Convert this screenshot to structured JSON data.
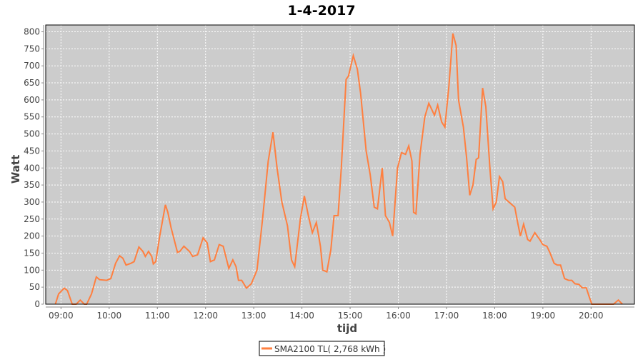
{
  "chart_data": {
    "type": "line",
    "title": "1-4-2017",
    "xlabel": "tijd",
    "ylabel": "Watt",
    "xlim": [
      "08:41",
      "20:54"
    ],
    "ylim": [
      0,
      820
    ],
    "grid": true,
    "legend_placement": "bottom",
    "plot_background": "#CCCCCC",
    "y_ticks": [
      "0",
      "50",
      "100",
      "150",
      "200",
      "250",
      "300",
      "350",
      "400",
      "450",
      "500",
      "550",
      "600",
      "650",
      "700",
      "750",
      "800"
    ],
    "x_ticks": [
      "09:00",
      "10:00",
      "11:00",
      "12:00",
      "13:00",
      "14:00",
      "15:00",
      "16:00",
      "17:00",
      "18:00",
      "19:00",
      "20:00"
    ],
    "series": [
      {
        "name": "SMA2100 TL( 2,768 kWh )",
        "color": "#FF7F3F",
        "x": [
          "08:53",
          "08:57",
          "09:04",
          "09:08",
          "09:14",
          "09:19",
          "09:24",
          "09:29",
          "09:32",
          "09:38",
          "09:44",
          "09:48",
          "09:57",
          "10:02",
          "10:08",
          "10:13",
          "10:17",
          "10:21",
          "10:27",
          "10:31",
          "10:37",
          "10:42",
          "10:45",
          "10:49",
          "10:53",
          "10:55",
          "10:58",
          "11:03",
          "11:10",
          "11:13",
          "11:17",
          "11:25",
          "11:28",
          "11:33",
          "11:40",
          "11:44",
          "11:50",
          "11:57",
          "12:02",
          "12:06",
          "12:11",
          "12:17",
          "12:22",
          "12:29",
          "12:34",
          "12:38",
          "12:41",
          "12:45",
          "12:51",
          "12:57",
          "13:04",
          "13:11",
          "13:18",
          "13:24",
          "13:29",
          "13:35",
          "13:42",
          "13:47",
          "13:51",
          "13:58",
          "14:03",
          "14:08",
          "14:13",
          "14:18",
          "14:23",
          "14:26",
          "14:31",
          "14:36",
          "14:40",
          "14:45",
          "14:49",
          "14:55",
          "14:58",
          "15:04",
          "15:09",
          "15:13",
          "15:20",
          "15:25",
          "15:30",
          "15:34",
          "15:40",
          "15:44",
          "15:49",
          "15:53",
          "15:59",
          "16:04",
          "16:09",
          "16:13",
          "16:17",
          "16:19",
          "16:22",
          "16:27",
          "16:33",
          "16:38",
          "16:41",
          "16:45",
          "16:49",
          "16:54",
          "16:58",
          "17:03",
          "17:08",
          "17:12",
          "17:15",
          "17:21",
          "17:25",
          "17:29",
          "17:33",
          "17:37",
          "17:40",
          "17:45",
          "17:49",
          "17:54",
          "17:58",
          "18:02",
          "18:06",
          "18:10",
          "18:13",
          "18:20",
          "18:25",
          "18:29",
          "18:32",
          "18:36",
          "18:41",
          "18:44",
          "18:50",
          "18:56",
          "19:00",
          "19:05",
          "19:09",
          "19:14",
          "19:18",
          "19:22",
          "19:27",
          "19:32",
          "19:36",
          "19:40",
          "19:45",
          "19:49",
          "19:54",
          "19:58",
          "20:01",
          "20:28",
          "20:34",
          "20:39"
        ],
        "y": [
          0,
          30,
          47,
          40,
          0,
          0,
          12,
          0,
          0,
          30,
          80,
          72,
          70,
          75,
          120,
          142,
          135,
          115,
          120,
          125,
          168,
          155,
          140,
          155,
          140,
          118,
          125,
          200,
          292,
          270,
          225,
          152,
          155,
          170,
          155,
          140,
          145,
          195,
          180,
          125,
          130,
          175,
          170,
          105,
          130,
          110,
          70,
          70,
          47,
          60,
          100,
          250,
          420,
          505,
          400,
          300,
          230,
          130,
          110,
          250,
          318,
          260,
          210,
          240,
          170,
          100,
          95,
          160,
          260,
          260,
          400,
          660,
          670,
          730,
          690,
          620,
          450,
          380,
          285,
          280,
          400,
          260,
          240,
          200,
          400,
          445,
          440,
          465,
          420,
          270,
          265,
          440,
          550,
          590,
          575,
          555,
          585,
          535,
          520,
          640,
          795,
          760,
          600,
          520,
          430,
          320,
          350,
          425,
          430,
          635,
          580,
          400,
          280,
          300,
          375,
          360,
          310,
          295,
          285,
          235,
          200,
          235,
          190,
          185,
          210,
          190,
          175,
          170,
          150,
          120,
          115,
          115,
          75,
          70,
          70,
          60,
          58,
          48,
          48,
          20,
          0,
          0,
          12,
          0
        ]
      }
    ]
  }
}
